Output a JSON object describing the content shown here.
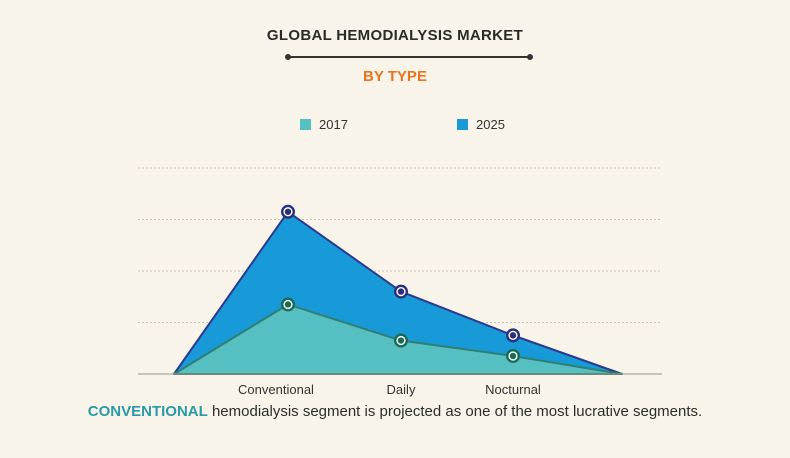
{
  "header": {
    "title": "GLOBAL HEMODIALYSIS MARKET",
    "subtitle": "BY TYPE"
  },
  "legend": [
    {
      "label": "2017",
      "color": "#55bfc1"
    },
    {
      "label": "2025",
      "color": "#199ad8"
    }
  ],
  "footer": {
    "highlight": "CONVENTIONAL",
    "rest": " hemodialysis segment is projected as one of the most lucrative segments."
  },
  "chart_data": {
    "type": "area",
    "title": "GLOBAL HEMODIALYSIS MARKET",
    "subtitle": "BY TYPE",
    "categories": [
      "Conventional",
      "Daily",
      "Nocturnal"
    ],
    "series": [
      {
        "name": "2017",
        "values": [
          1.35,
          0.65,
          0.35
        ],
        "color": "#55bfc1",
        "marker_color": "#1a6b56"
      },
      {
        "name": "2025",
        "values": [
          3.15,
          1.6,
          0.75
        ],
        "color": "#199ad8",
        "marker_color": "#2a2f7a"
      }
    ],
    "ylim": [
      0,
      4
    ],
    "y_gridlines": [
      1,
      2,
      3,
      4
    ],
    "ytick_labels_shown": false,
    "grid": true,
    "legend_position": "top-center",
    "xlabel": "",
    "ylabel": ""
  }
}
